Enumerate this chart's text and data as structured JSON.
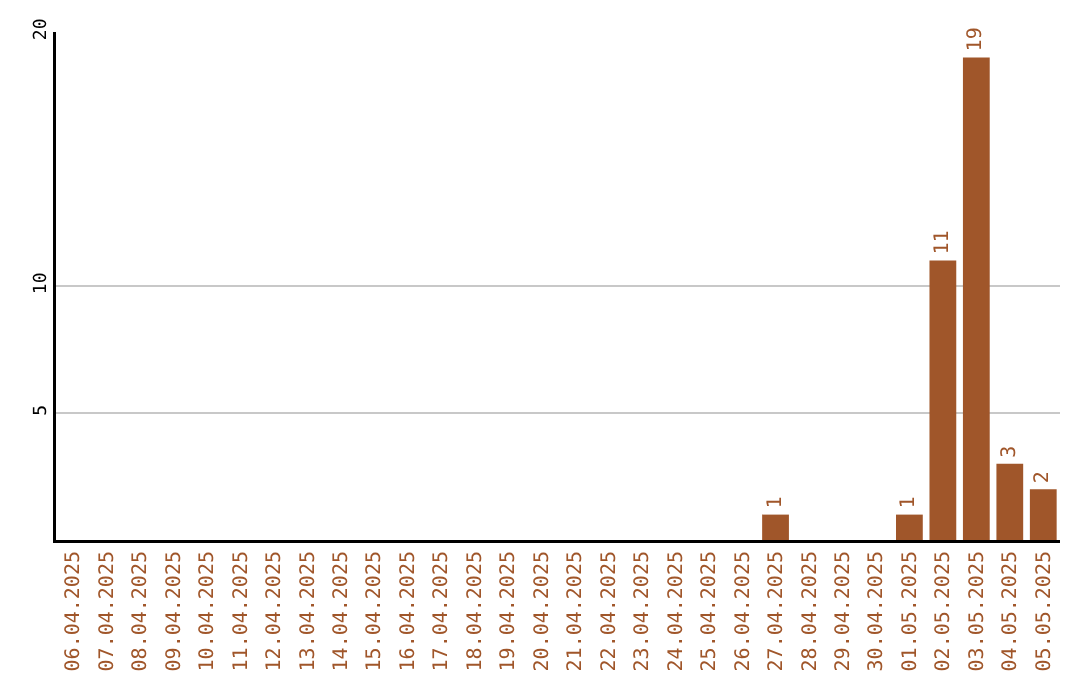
{
  "chart_data": {
    "type": "bar",
    "categories": [
      "06.04.2025",
      "07.04.2025",
      "08.04.2025",
      "09.04.2025",
      "10.04.2025",
      "11.04.2025",
      "12.04.2025",
      "13.04.2025",
      "14.04.2025",
      "15.04.2025",
      "16.04.2025",
      "17.04.2025",
      "18.04.2025",
      "19.04.2025",
      "20.04.2025",
      "21.04.2025",
      "22.04.2025",
      "23.04.2025",
      "24.04.2025",
      "25.04.2025",
      "26.04.2025",
      "27.04.2025",
      "28.04.2025",
      "29.04.2025",
      "30.04.2025",
      "01.05.2025",
      "02.05.2025",
      "03.05.2025",
      "04.05.2025",
      "05.05.2025"
    ],
    "values": [
      0,
      0,
      0,
      0,
      0,
      0,
      0,
      0,
      0,
      0,
      0,
      0,
      0,
      0,
      0,
      0,
      0,
      0,
      0,
      0,
      0,
      1,
      0,
      0,
      0,
      1,
      11,
      19,
      3,
      2
    ],
    "value_labels": [
      null,
      null,
      null,
      null,
      null,
      null,
      null,
      null,
      null,
      null,
      null,
      null,
      null,
      null,
      null,
      null,
      null,
      null,
      null,
      null,
      null,
      "1",
      null,
      null,
      null,
      "1",
      "11",
      "19",
      "3",
      "2"
    ],
    "color": "#a0562a",
    "ylim": [
      0,
      20
    ],
    "yticks": [
      5,
      10,
      20
    ],
    "grid": "y"
  }
}
